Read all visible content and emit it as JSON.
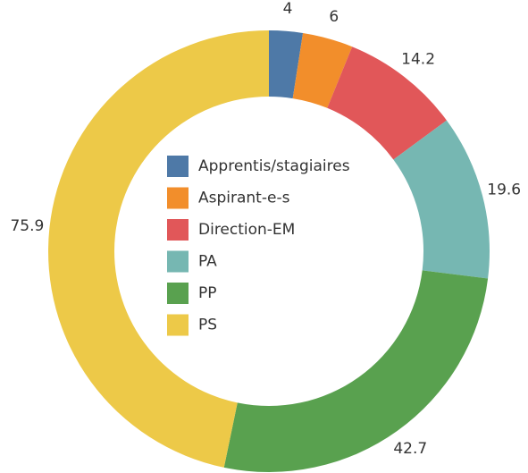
{
  "chart_data": {
    "type": "donut",
    "categories": [
      "Apprentis/stagiaires",
      "Aspirant-e-s",
      "Direction-EM",
      "PA",
      "PP",
      "PS"
    ],
    "values": [
      4,
      6,
      14.2,
      19.6,
      42.7,
      75.9
    ],
    "colors": [
      "#4e79a7",
      "#f28e2b",
      "#e15759",
      "#76b7b2",
      "#59a14f",
      "#edc948"
    ],
    "legend": "center"
  }
}
